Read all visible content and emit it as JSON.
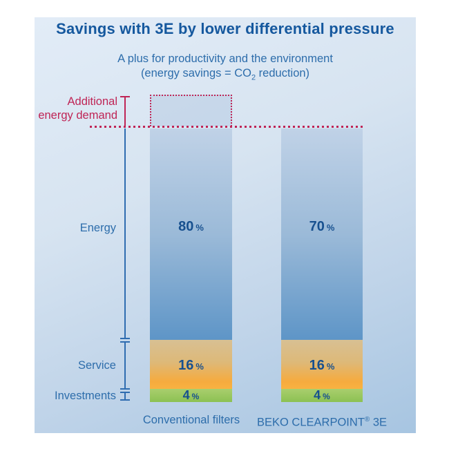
{
  "chart_data": {
    "type": "bar",
    "stacked": true,
    "title": "Savings with 3E by lower differential pressure",
    "subtitle": "A plus for productivity and the environment",
    "subtitle2": "(energy savings = CO2 reduction)",
    "categories": [
      "Conventional filters",
      "BEKO CLEARPOINT® 3E"
    ],
    "series": [
      {
        "name": "Energy",
        "values": [
          80,
          70
        ]
      },
      {
        "name": "Service",
        "values": [
          16,
          16
        ]
      },
      {
        "name": "Investments",
        "values": [
          4,
          4
        ]
      }
    ],
    "unit": "%",
    "ylim": [
      0,
      100
    ],
    "grid": false,
    "legend_position": "left-side labels with axis brackets",
    "annotation": {
      "label": "Additional energy demand",
      "target": "Conventional filters",
      "style": "red dotted box above bar top, dotted baseline across both bars"
    }
  },
  "display": {
    "additional_label": "Additional\nenergy demand",
    "co2_prefix": "(energy savings = CO",
    "co2_sub": "2",
    "co2_suffix": " reduction)",
    "beko_prefix": "BEKO CLEARPOINT",
    "beko_reg": "®",
    "beko_suffix": " 3E",
    "percent": "%"
  },
  "colors": {
    "title": "#15589e",
    "text_blue": "#2d6dab",
    "accent_red": "#bf2455",
    "axis_blue": "#2e6cb0",
    "value_text": "#17508f",
    "energy_top": "#c0d2e7",
    "energy_bottom": "#5e95c7",
    "service_top": "#d8c093",
    "service_bottom": "#f6ab3e",
    "invest_top": "#a9ce6d",
    "invest_bottom": "#8cc153",
    "panel_top": "#e2ecf7",
    "panel_bottom": "#a7c5e1"
  }
}
